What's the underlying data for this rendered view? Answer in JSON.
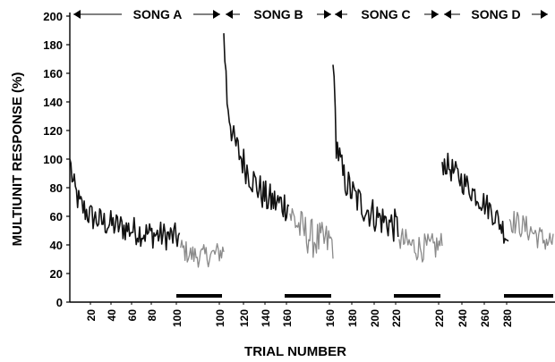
{
  "chart_data": {
    "type": "line",
    "xlabel": "TRIAL NUMBER",
    "ylabel": "MULTIUNIT RESPONSE (%)",
    "ylim": [
      0,
      200
    ],
    "y_ticks": [
      "0",
      "20",
      "40",
      "60",
      "80",
      "100",
      "120",
      "140",
      "160",
      "180",
      "200"
    ],
    "x_tick_labels": [
      "20",
      "40",
      "60",
      "80",
      "100",
      "100",
      "120",
      "140",
      "160",
      "160",
      "180",
      "200",
      "220",
      "220",
      "240",
      "260",
      "280"
    ],
    "grid": false,
    "legend": "none",
    "songs": [
      {
        "label": "SONG A"
      },
      {
        "label": "SONG B"
      },
      {
        "label": "SONG C"
      },
      {
        "label": "SONG D"
      }
    ],
    "colors": {
      "habituation": "#111111",
      "probe": "#8a8a8a",
      "bar": "#000000"
    },
    "series": [
      {
        "song": "SONG A",
        "phase": "habituation",
        "trials": [
          1,
          100
        ],
        "anchors": [
          [
            1,
            100
          ],
          [
            4,
            82
          ],
          [
            10,
            68
          ],
          [
            20,
            60
          ],
          [
            30,
            56
          ],
          [
            40,
            54
          ],
          [
            50,
            52
          ],
          [
            60,
            50
          ],
          [
            70,
            48
          ],
          [
            80,
            47
          ],
          [
            90,
            46
          ],
          [
            100,
            45
          ]
        ],
        "noise": 10
      },
      {
        "song": "SONG A",
        "phase": "probe",
        "trials": [
          101,
          140
        ],
        "anchors": [
          [
            101,
            38
          ],
          [
            110,
            33
          ],
          [
            120,
            32
          ],
          [
            130,
            33
          ],
          [
            140,
            36
          ]
        ],
        "noise": 8
      },
      {
        "song": "SONG B",
        "phase": "habituation",
        "trials": [
          101,
          160
        ],
        "anchors": [
          [
            101,
            188
          ],
          [
            104,
            142
          ],
          [
            110,
            112
          ],
          [
            120,
            96
          ],
          [
            130,
            82
          ],
          [
            140,
            72
          ],
          [
            150,
            69
          ],
          [
            160,
            68
          ]
        ],
        "noise": 12
      },
      {
        "song": "SONG B",
        "phase": "probe",
        "trials": [
          161,
          200
        ],
        "anchors": [
          [
            161,
            62
          ],
          [
            170,
            52
          ],
          [
            180,
            45
          ],
          [
            190,
            42
          ],
          [
            200,
            42
          ]
        ],
        "noise": 14
      },
      {
        "song": "SONG C",
        "phase": "habituation",
        "trials": [
          161,
          220
        ],
        "anchors": [
          [
            161,
            166
          ],
          [
            164,
            112
          ],
          [
            170,
            88
          ],
          [
            180,
            74
          ],
          [
            190,
            66
          ],
          [
            200,
            60
          ],
          [
            210,
            56
          ],
          [
            220,
            52
          ]
        ],
        "noise": 12
      },
      {
        "song": "SONG C",
        "phase": "probe",
        "trials": [
          221,
          260
        ],
        "anchors": [
          [
            221,
            44
          ],
          [
            230,
            40
          ],
          [
            240,
            38
          ],
          [
            250,
            38
          ],
          [
            260,
            40
          ]
        ],
        "noise": 10
      },
      {
        "song": "SONG D",
        "phase": "habituation",
        "trials": [
          221,
          280
        ],
        "anchors": [
          [
            221,
            98
          ],
          [
            225,
            96
          ],
          [
            235,
            88
          ],
          [
            245,
            80
          ],
          [
            255,
            72
          ],
          [
            265,
            64
          ],
          [
            272,
            56
          ],
          [
            280,
            44
          ]
        ],
        "noise": 9
      },
      {
        "song": "SONG D",
        "phase": "probe",
        "trials": [
          281,
          320
        ],
        "anchors": [
          [
            281,
            58
          ],
          [
            290,
            54
          ],
          [
            300,
            50
          ],
          [
            310,
            44
          ],
          [
            320,
            42
          ]
        ],
        "noise": 9
      }
    ]
  }
}
